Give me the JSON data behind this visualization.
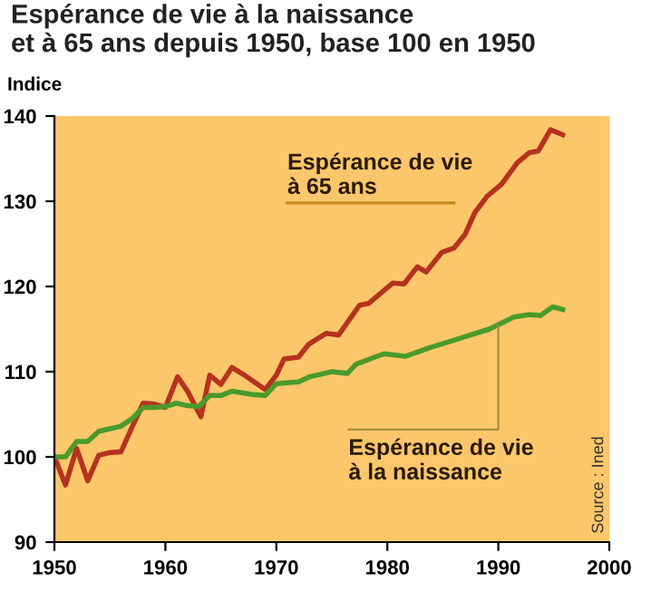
{
  "chart_data": {
    "type": "line",
    "title": "Espérance de vie à la naissance\net à 65 ans depuis 1950, base 100 en 1950",
    "ylabel": "Indice",
    "xlim": [
      1950,
      2000
    ],
    "xticks": [
      1950,
      1960,
      1970,
      1980,
      1990,
      2000
    ],
    "ylim": [
      90,
      140
    ],
    "yticks": [
      90,
      100,
      110,
      120,
      130,
      140
    ],
    "grid": false,
    "legend": false,
    "marker": "none",
    "line_style": "solid",
    "series": [
      {
        "name": "Espérance de vie\nà 65 ans",
        "color": "#b5321e",
        "x": [
          1950,
          1951,
          1952,
          1953,
          1954,
          1955,
          1956,
          1957,
          1958,
          1959,
          1960,
          1961.1,
          1962,
          1963.2,
          1964,
          1965,
          1966,
          1967,
          1968,
          1969,
          1970,
          1970.7,
          1972,
          1972.9,
          1974.5,
          1975.6,
          1977.5,
          1978.3,
          1980.5,
          1981.5,
          1982.7,
          1983.5,
          1984.9,
          1986,
          1987,
          1987.9,
          1989,
          1990.3,
          1991.7,
          1992.8,
          1993.6,
          1994.7,
          1995.8
        ],
        "values": [
          100,
          96.7,
          101,
          97.2,
          100.2,
          100.5,
          100.6,
          103.5,
          106.3,
          106.2,
          105.8,
          109.4,
          107.7,
          104.7,
          109.6,
          108.5,
          110.5,
          109.7,
          108.8,
          107.9,
          109.6,
          111.5,
          111.7,
          113.2,
          114.5,
          114.3,
          117.8,
          118.0,
          120.4,
          120.3,
          122.3,
          121.7,
          124.0,
          124.5,
          126.1,
          128.7,
          130.6,
          132.0,
          134.5,
          135.7,
          135.9,
          138.4,
          137.8
        ]
      },
      {
        "name": "Espérance de vie\nà la naissance",
        "color": "#4a9a2c",
        "x": [
          1950,
          1951,
          1952,
          1953,
          1954,
          1955,
          1956,
          1957,
          1958,
          1959,
          1960,
          1961,
          1962,
          1963,
          1964,
          1965,
          1966,
          1967,
          1968,
          1969,
          1970,
          1971,
          1972,
          1973,
          1975,
          1976.4,
          1977.2,
          1979.7,
          1981.6,
          1983.8,
          1986.5,
          1989.2,
          1991.4,
          1992.8,
          1993.8,
          1994.9,
          1995.8
        ],
        "values": [
          100,
          100,
          101.8,
          101.8,
          103,
          103.3,
          103.6,
          104.5,
          105.8,
          105.8,
          105.9,
          106.3,
          106,
          105.9,
          107.2,
          107.2,
          107.7,
          107.5,
          107.3,
          107.2,
          108.6,
          108.7,
          108.8,
          109.4,
          110,
          109.8,
          110.9,
          112.1,
          111.8,
          112.8,
          113.9,
          115,
          116.4,
          116.7,
          116.6,
          117.6,
          117.3
        ]
      }
    ],
    "annotations": [
      "Source : Ined"
    ]
  }
}
